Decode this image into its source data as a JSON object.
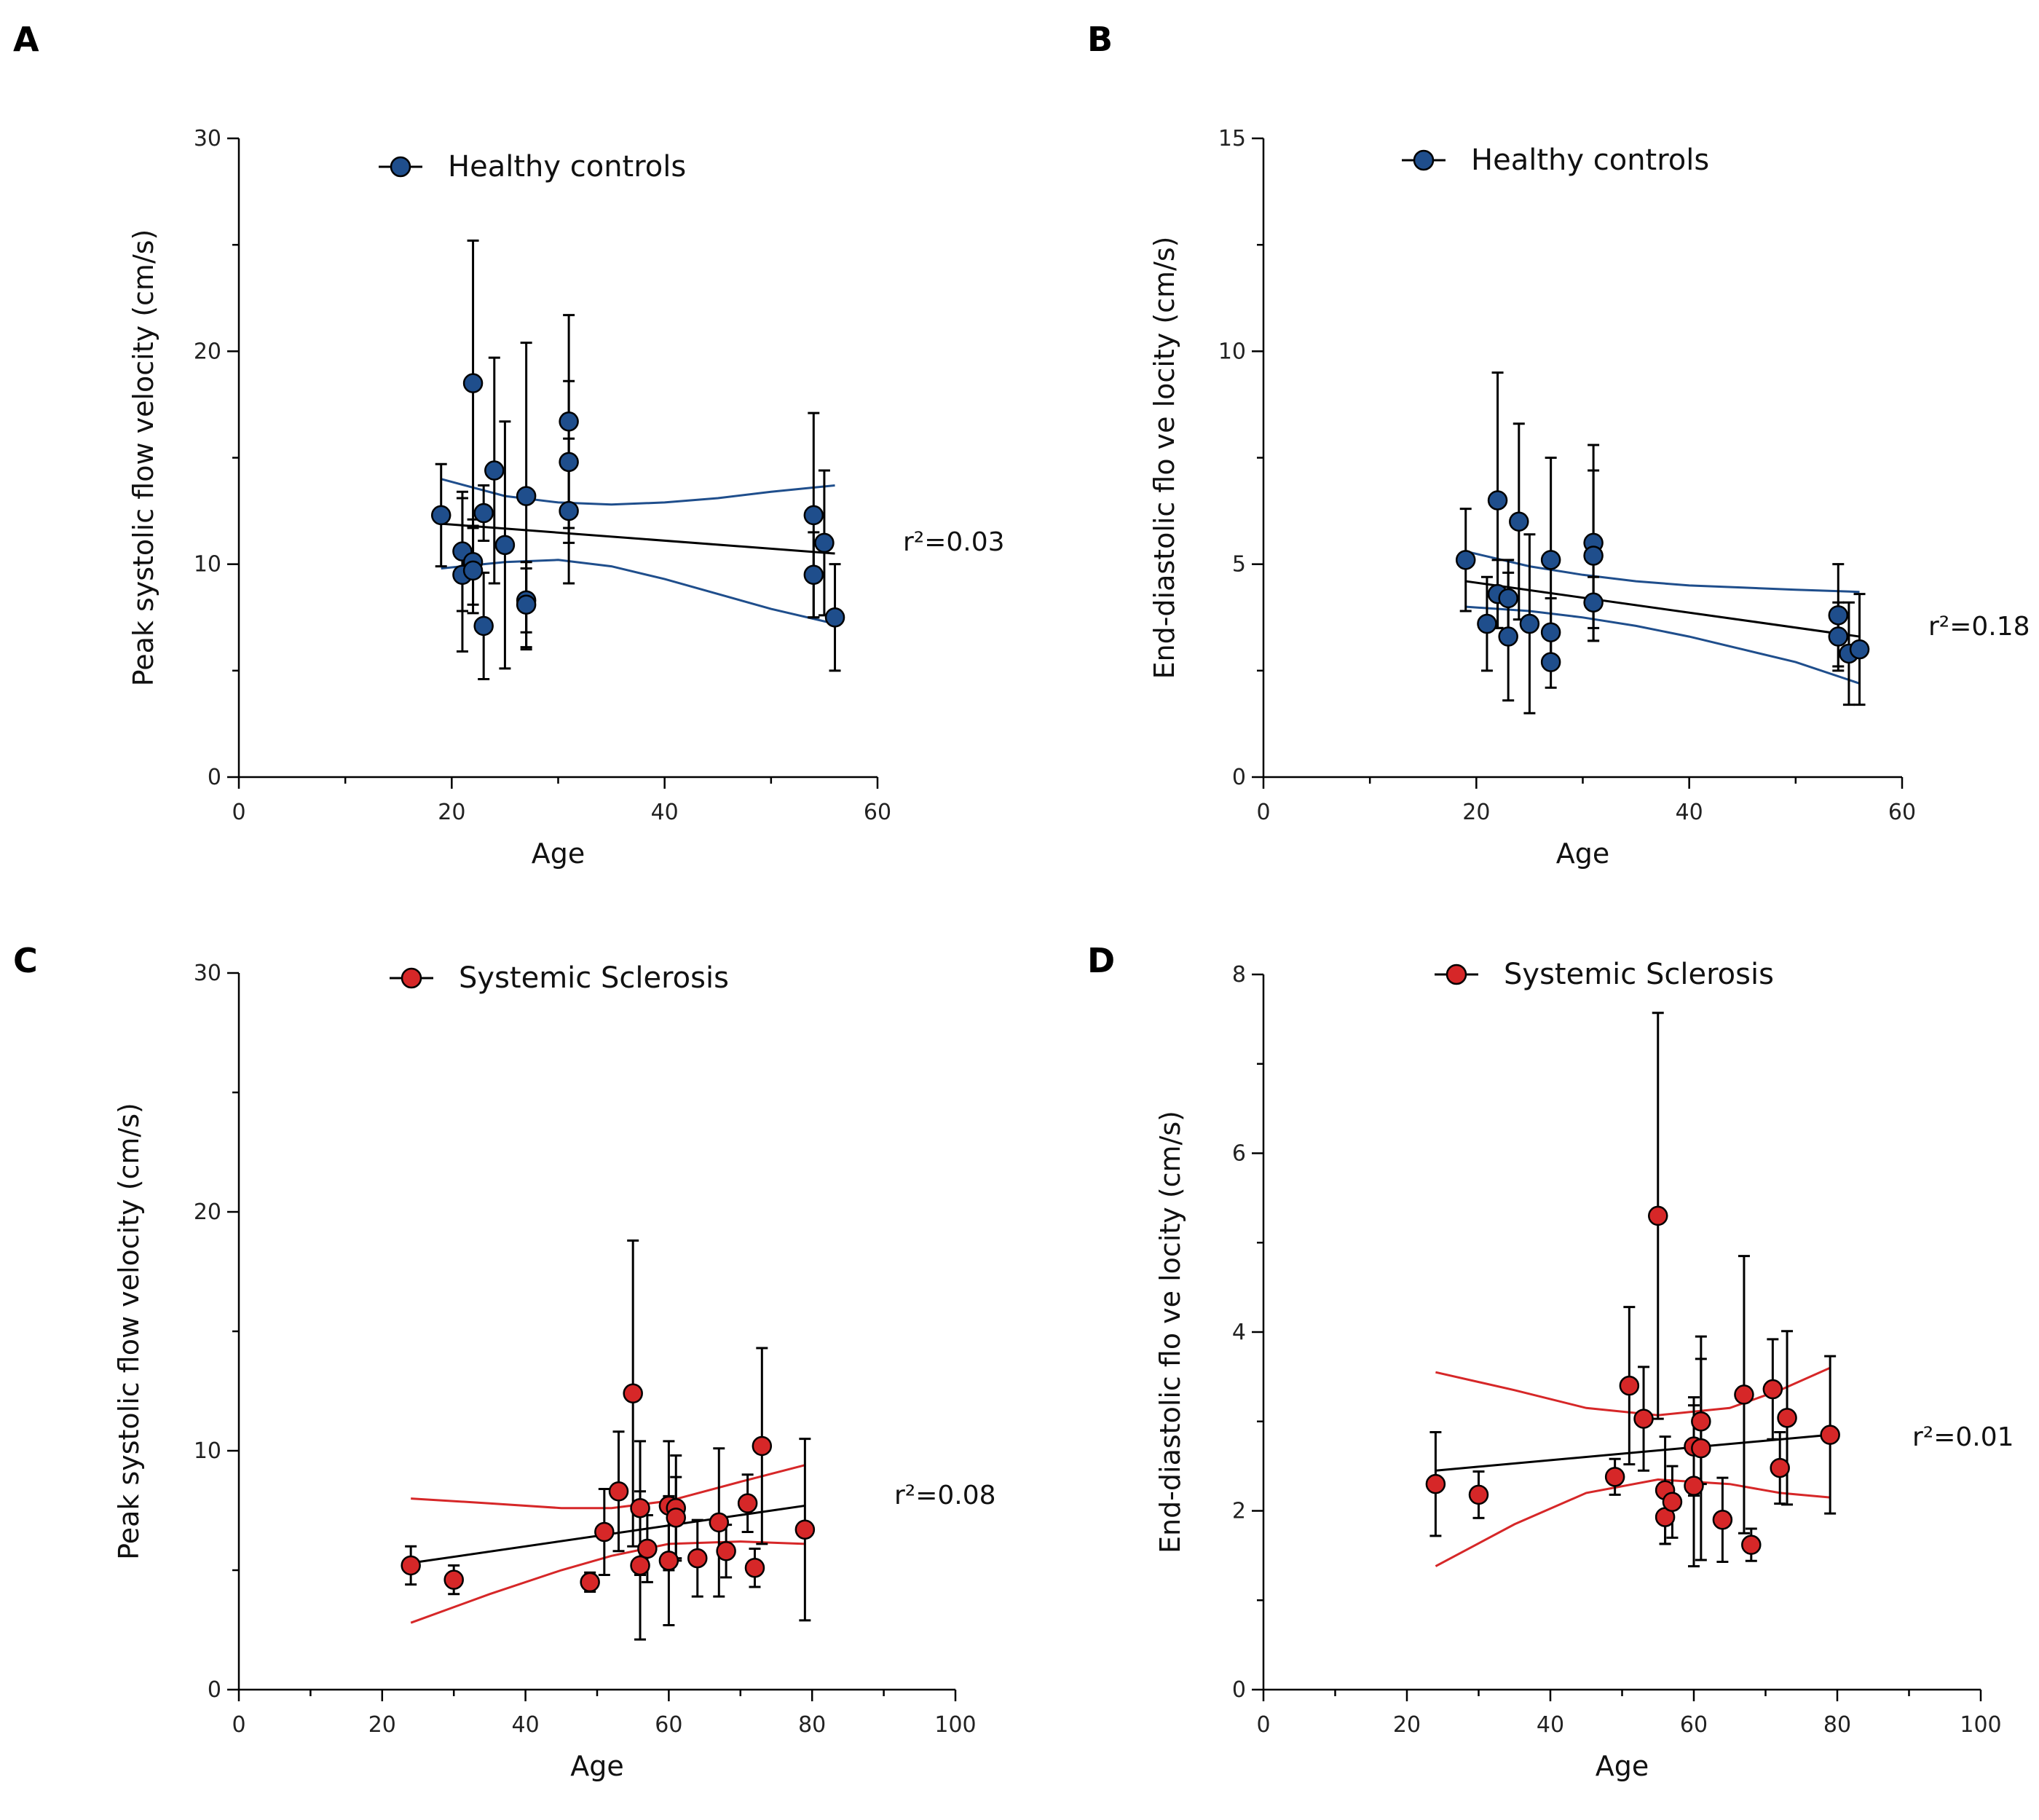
{
  "chart_data": [
    {
      "panel": "A",
      "type": "scatter",
      "xlabel": "Age",
      "ylabel": "Peak systolic flow velocity (cm/s)",
      "xlim": [
        0,
        60
      ],
      "ylim": [
        0,
        30
      ],
      "xticks": [
        "0",
        "20",
        "40",
        "60"
      ],
      "yticks": [
        "0",
        "10",
        "20",
        "30"
      ],
      "legend": "Healthy controls",
      "r2": "r²=0.03",
      "color": "#1f4e8c",
      "ci_color": "#1f4e8c",
      "points": [
        {
          "x": 19,
          "y": 12.3,
          "err": 2.4
        },
        {
          "x": 21,
          "y": 10.6,
          "err": 2.8
        },
        {
          "x": 21,
          "y": 9.5,
          "err": 3.6
        },
        {
          "x": 22,
          "y": 18.5,
          "err": 6.7
        },
        {
          "x": 22,
          "y": 10.1,
          "err": 2.0
        },
        {
          "x": 22,
          "y": 9.7,
          "err": 2.0
        },
        {
          "x": 23,
          "y": 12.4,
          "err": 1.3
        },
        {
          "x": 23,
          "y": 7.1,
          "err": 2.5
        },
        {
          "x": 24,
          "y": 14.4,
          "err": 5.3
        },
        {
          "x": 25,
          "y": 10.9,
          "err": 5.8
        },
        {
          "x": 27,
          "y": 13.2,
          "err": 7.2
        },
        {
          "x": 27,
          "y": 8.3,
          "err": 1.5
        },
        {
          "x": 27,
          "y": 8.1,
          "err": 2.0
        },
        {
          "x": 31,
          "y": 16.7,
          "err": 5.0
        },
        {
          "x": 31,
          "y": 14.8,
          "err": 3.8
        },
        {
          "x": 31,
          "y": 12.5,
          "err": 3.4
        },
        {
          "x": 54,
          "y": 12.3,
          "err": 4.8
        },
        {
          "x": 54,
          "y": 9.5,
          "err": 2.0
        },
        {
          "x": 55,
          "y": 11.0,
          "err": 3.4
        },
        {
          "x": 56,
          "y": 7.5,
          "err": 2.5
        }
      ],
      "fit": {
        "x": [
          19,
          56
        ],
        "y": [
          11.9,
          10.5
        ]
      },
      "ci_upper": {
        "x": [
          19,
          25,
          30,
          35,
          40,
          45,
          50,
          56
        ],
        "y": [
          14.0,
          13.2,
          12.9,
          12.8,
          12.9,
          13.1,
          13.4,
          13.7
        ]
      },
      "ci_lower": {
        "x": [
          19,
          25,
          30,
          35,
          40,
          45,
          50,
          56
        ],
        "y": [
          9.8,
          10.1,
          10.2,
          9.9,
          9.3,
          8.6,
          7.9,
          7.2
        ]
      }
    },
    {
      "panel": "B",
      "type": "scatter",
      "xlabel": "Age",
      "ylabel": "End-diastolic flo ve locity (cm/s)",
      "xlim": [
        0,
        60
      ],
      "ylim": [
        0,
        15
      ],
      "xticks": [
        "0",
        "20",
        "40",
        "60"
      ],
      "yticks": [
        "0",
        "5",
        "10",
        "15"
      ],
      "legend": "Healthy controls",
      "r2": "r²=0.18",
      "color": "#1f4e8c",
      "ci_color": "#1f4e8c",
      "points": [
        {
          "x": 19,
          "y": 5.1,
          "err": 1.2
        },
        {
          "x": 21,
          "y": 3.6,
          "err": 1.1
        },
        {
          "x": 22,
          "y": 6.5,
          "err": 3.0
        },
        {
          "x": 22,
          "y": 4.3,
          "err": 0.8
        },
        {
          "x": 23,
          "y": 4.2,
          "err": 0.9
        },
        {
          "x": 23,
          "y": 3.3,
          "err": 1.5
        },
        {
          "x": 24,
          "y": 6.0,
          "err": 2.3
        },
        {
          "x": 25,
          "y": 3.6,
          "err": 2.1
        },
        {
          "x": 27,
          "y": 5.1,
          "err": 2.4
        },
        {
          "x": 27,
          "y": 3.4,
          "err": 0.8
        },
        {
          "x": 27,
          "y": 2.7,
          "err": 0.6
        },
        {
          "x": 31,
          "y": 5.5,
          "err": 2.3
        },
        {
          "x": 31,
          "y": 5.2,
          "err": 2.0
        },
        {
          "x": 31,
          "y": 4.1,
          "err": 0.6
        },
        {
          "x": 54,
          "y": 3.8,
          "err": 1.2
        },
        {
          "x": 54,
          "y": 3.3,
          "err": 0.8
        },
        {
          "x": 55,
          "y": 2.9,
          "err": 1.2
        },
        {
          "x": 56,
          "y": 3.0,
          "err": 1.3
        }
      ],
      "fit": {
        "x": [
          19,
          56
        ],
        "y": [
          4.6,
          3.3
        ]
      },
      "ci_upper": {
        "x": [
          19,
          25,
          30,
          35,
          40,
          45,
          50,
          56
        ],
        "y": [
          5.3,
          4.95,
          4.75,
          4.6,
          4.5,
          4.45,
          4.4,
          4.35
        ]
      },
      "ci_lower": {
        "x": [
          19,
          25,
          30,
          35,
          40,
          45,
          50,
          56
        ],
        "y": [
          4.0,
          3.9,
          3.75,
          3.55,
          3.3,
          3.0,
          2.7,
          2.2
        ]
      }
    },
    {
      "panel": "C",
      "type": "scatter",
      "xlabel": "Age",
      "ylabel": "Peak systolic flow velocity (cm/s)",
      "xlim": [
        0,
        100
      ],
      "ylim": [
        0,
        30
      ],
      "xticks": [
        "0",
        "20",
        "40",
        "60",
        "80",
        "100"
      ],
      "yticks": [
        "0",
        "10",
        "20",
        "30"
      ],
      "legend": "Systemic Sclerosis",
      "r2": "r²=0.08",
      "color": "#d62728",
      "ci_color": "#d62728",
      "points": [
        {
          "x": 24,
          "y": 5.2,
          "err": 0.8
        },
        {
          "x": 30,
          "y": 4.6,
          "err": 0.6
        },
        {
          "x": 49,
          "y": 4.5,
          "err": 0.4
        },
        {
          "x": 51,
          "y": 6.6,
          "err": 1.8
        },
        {
          "x": 53,
          "y": 8.3,
          "err": 2.5
        },
        {
          "x": 55,
          "y": 12.4,
          "err": 6.4
        },
        {
          "x": 56,
          "y": 7.6,
          "err": 2.8
        },
        {
          "x": 56,
          "y": 5.2,
          "err": 3.1
        },
        {
          "x": 57,
          "y": 5.9,
          "err": 1.4
        },
        {
          "x": 60,
          "y": 7.7,
          "err": 2.7
        },
        {
          "x": 60,
          "y": 5.4,
          "err": 2.7
        },
        {
          "x": 61,
          "y": 7.6,
          "err": 2.2
        },
        {
          "x": 61,
          "y": 7.2,
          "err": 1.7
        },
        {
          "x": 64,
          "y": 5.5,
          "err": 1.6
        },
        {
          "x": 67,
          "y": 7.0,
          "err": 3.1
        },
        {
          "x": 68,
          "y": 5.8,
          "err": 1.1
        },
        {
          "x": 71,
          "y": 7.8,
          "err": 1.2
        },
        {
          "x": 72,
          "y": 5.1,
          "err": 0.8
        },
        {
          "x": 73,
          "y": 10.2,
          "err": 4.1
        },
        {
          "x": 79,
          "y": 6.7,
          "err": 3.8
        }
      ],
      "fit": {
        "x": [
          24,
          79
        ],
        "y": [
          5.3,
          7.7
        ]
      },
      "ci_upper": {
        "x": [
          24,
          35,
          45,
          52,
          60,
          70,
          79
        ],
        "y": [
          8.0,
          7.8,
          7.6,
          7.6,
          7.9,
          8.7,
          9.4
        ]
      },
      "ci_lower": {
        "x": [
          24,
          35,
          45,
          52,
          60,
          70,
          79
        ],
        "y": [
          2.8,
          4.0,
          5.0,
          5.6,
          6.1,
          6.2,
          6.1
        ]
      }
    },
    {
      "panel": "D",
      "type": "scatter",
      "xlabel": "Age",
      "ylabel": "End-diastolic flo ve locity (cm/s)",
      "xlim": [
        0,
        100
      ],
      "ylim": [
        0,
        8
      ],
      "xticks": [
        "0",
        "20",
        "40",
        "60",
        "80",
        "100"
      ],
      "yticks": [
        "0",
        "2",
        "4",
        "6",
        "8"
      ],
      "legend": "Systemic Sclerosis",
      "r2": "r²=0.01",
      "color": "#d62728",
      "ci_color": "#d62728",
      "points": [
        {
          "x": 24,
          "y": 2.3,
          "err": 0.58
        },
        {
          "x": 30,
          "y": 2.18,
          "err": 0.26
        },
        {
          "x": 49,
          "y": 2.38,
          "err": 0.2
        },
        {
          "x": 51,
          "y": 3.4,
          "err": 0.88
        },
        {
          "x": 53,
          "y": 3.03,
          "err": 0.58
        },
        {
          "x": 55,
          "y": 5.3,
          "err": 2.27
        },
        {
          "x": 56,
          "y": 2.23,
          "err": 0.6
        },
        {
          "x": 56,
          "y": 1.93,
          "err": 0.3
        },
        {
          "x": 57,
          "y": 2.1,
          "err": 0.4
        },
        {
          "x": 60,
          "y": 2.72,
          "err": 0.55
        },
        {
          "x": 60,
          "y": 2.28,
          "err": 0.9
        },
        {
          "x": 61,
          "y": 3.0,
          "err": 0.7
        },
        {
          "x": 61,
          "y": 2.7,
          "err": 1.25
        },
        {
          "x": 64,
          "y": 1.9,
          "err": 0.47
        },
        {
          "x": 67,
          "y": 3.3,
          "err": 1.55
        },
        {
          "x": 68,
          "y": 1.62,
          "err": 0.18
        },
        {
          "x": 71,
          "y": 3.36,
          "err": 0.56
        },
        {
          "x": 72,
          "y": 2.48,
          "err": 0.4
        },
        {
          "x": 73,
          "y": 3.04,
          "err": 0.97
        },
        {
          "x": 79,
          "y": 2.85,
          "err": 0.88
        }
      ],
      "fit": {
        "x": [
          24,
          79
        ],
        "y": [
          2.45,
          2.85
        ]
      },
      "ci_upper": {
        "x": [
          24,
          35,
          45,
          55,
          65,
          72,
          79
        ],
        "y": [
          3.55,
          3.35,
          3.15,
          3.07,
          3.15,
          3.35,
          3.6
        ]
      },
      "ci_lower": {
        "x": [
          24,
          35,
          45,
          55,
          65,
          72,
          79
        ],
        "y": [
          1.38,
          1.85,
          2.2,
          2.35,
          2.3,
          2.2,
          2.15
        ]
      }
    }
  ]
}
